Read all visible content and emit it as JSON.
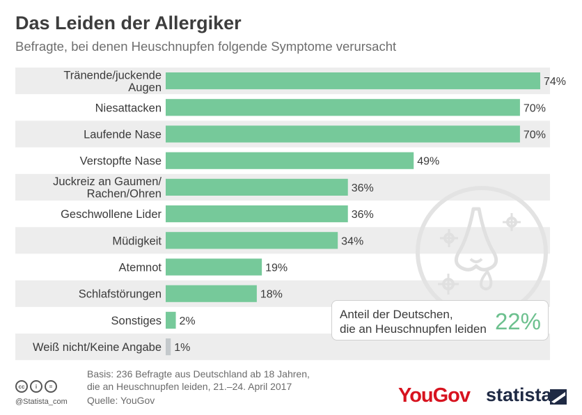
{
  "header": {
    "title": "Das Leiden der Allergiker",
    "subtitle": "Befragte, bei denen Heuschnupfen folgende Symptome verursacht"
  },
  "chart_data": {
    "type": "bar",
    "orientation": "horizontal",
    "categories": [
      "Tränende/juckende\nAugen",
      "Niesattacken",
      "Laufende Nase",
      "Verstopfte Nase",
      "Juckreiz an Gaumen/\nRachen/Ohren",
      "Geschwollene Lider",
      "Müdigkeit",
      "Atemnot",
      "Schlafstörungen",
      "Sonstiges",
      "Weiß nicht/Keine Angabe"
    ],
    "values": [
      74,
      70,
      70,
      49,
      36,
      36,
      34,
      19,
      18,
      2,
      1
    ],
    "value_labels": [
      "74%",
      "70%",
      "70%",
      "49%",
      "36%",
      "36%",
      "34%",
      "19%",
      "18%",
      "2%",
      "1%"
    ],
    "unit": "%",
    "xlim": [
      0,
      100
    ],
    "grid": false,
    "colors": {
      "bar": "#76c99a",
      "bar_muted": "#c4c9cc",
      "stripe": "#ededed"
    }
  },
  "callout": {
    "text_line1": "Anteil der Deutschen,",
    "text_line2": "die an Heuschnupfen leiden",
    "value": "22%"
  },
  "footer": {
    "basis_line1": "Basis: 236 Befragte aus Deutschland ab 18 Jahren,",
    "basis_line2": "die an Heuschnupfen leiden, 21.–24. April 2017",
    "source": "Quelle: YouGov",
    "handle": "@Statista_com",
    "license_icons": [
      "cc-icon",
      "by-icon",
      "nd-icon"
    ],
    "cc_glyphs": [
      "cc",
      "i",
      "="
    ],
    "logo_yougov": "YouGov",
    "logo_statista": "statista"
  }
}
